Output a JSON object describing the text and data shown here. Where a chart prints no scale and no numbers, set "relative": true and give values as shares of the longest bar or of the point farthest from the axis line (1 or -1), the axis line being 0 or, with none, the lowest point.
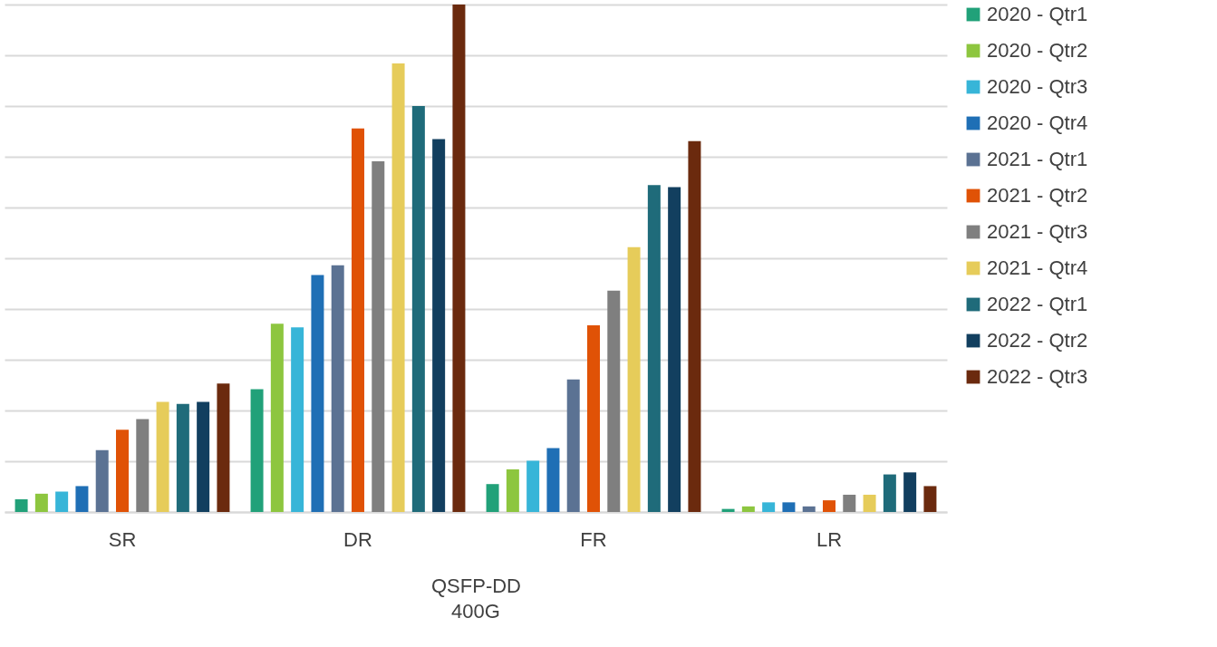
{
  "chart_data": {
    "type": "bar",
    "relative": true,
    "categories": [
      "SR",
      "DR",
      "FR",
      "LR"
    ],
    "xlabel": "QSFP-DD",
    "annotations": [
      "400G"
    ],
    "grid": "y",
    "legend": "right",
    "series": [
      {
        "name": "2020 - Qtr1",
        "color": "#21a179",
        "values": [
          0.025,
          0.242,
          0.055,
          0.006
        ]
      },
      {
        "name": "2020 - Qtr2",
        "color": "#8dc63f",
        "values": [
          0.036,
          0.371,
          0.084,
          0.011
        ]
      },
      {
        "name": "2020 - Qtr3",
        "color": "#37b5d8",
        "values": [
          0.04,
          0.364,
          0.101,
          0.019
        ]
      },
      {
        "name": "2020 - Qtr4",
        "color": "#1f6fb5",
        "values": [
          0.051,
          0.467,
          0.126,
          0.019
        ]
      },
      {
        "name": "2021 - Qtr1",
        "color": "#5b7293",
        "values": [
          0.122,
          0.486,
          0.261,
          0.011
        ]
      },
      {
        "name": "2021 - Qtr2",
        "color": "#e05206",
        "values": [
          0.162,
          0.756,
          0.368,
          0.023
        ]
      },
      {
        "name": "2021 - Qtr3",
        "color": "#7f7f7f",
        "values": [
          0.183,
          0.691,
          0.436,
          0.034
        ]
      },
      {
        "name": "2021 - Qtr4",
        "color": "#e6cc5a",
        "values": [
          0.217,
          0.884,
          0.522,
          0.034
        ]
      },
      {
        "name": "2022 - Qtr1",
        "color": "#1f6b7a",
        "values": [
          0.213,
          0.8,
          0.644,
          0.074
        ]
      },
      {
        "name": "2022 - Qtr2",
        "color": "#123f5f",
        "values": [
          0.217,
          0.735,
          0.64,
          0.078
        ]
      },
      {
        "name": "2022 - Qtr3",
        "color": "#6b2a0e",
        "values": [
          0.253,
          1,
          0.731,
          0.051
        ]
      }
    ]
  }
}
